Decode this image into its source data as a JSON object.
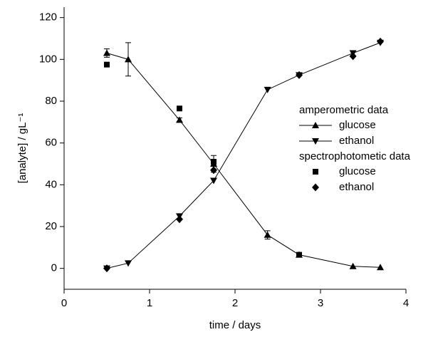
{
  "chart_data": {
    "type": "line",
    "xlabel": "time / days",
    "ylabel": "[analyte] / gL⁻¹",
    "xlim": [
      0,
      4
    ],
    "xticks": [
      0,
      1,
      2,
      3,
      4
    ],
    "ylim": [
      -10,
      125
    ],
    "yticks": [
      0,
      20,
      40,
      60,
      80,
      100,
      120
    ],
    "series_groups": [
      {
        "title": "amperometric data",
        "series": [
          {
            "name": "glucose",
            "color": "#000000",
            "marker": "triangle-up",
            "line": true,
            "x": [
              0.5,
              0.75,
              1.35,
              1.75,
              2.38,
              2.75,
              3.38,
              3.7
            ],
            "values": [
              103,
              100,
              71,
              50,
              16,
              6.5,
              1,
              0.5
            ],
            "errors": [
              2,
              8,
              1,
              4,
              2,
              1,
              null,
              null
            ]
          },
          {
            "name": "ethanol",
            "color": "#000000",
            "marker": "triangle-down",
            "line": true,
            "x": [
              0.5,
              0.75,
              1.35,
              1.75,
              2.38,
              2.75,
              3.38,
              3.7
            ],
            "values": [
              0,
              2.5,
              25,
              42,
              85.5,
              92.5,
              103,
              108
            ]
          }
        ]
      },
      {
        "title": "spectrophotometic data",
        "series": [
          {
            "name": "glucose",
            "color": "#000000",
            "marker": "square",
            "line": false,
            "x": [
              0.5,
              1.35,
              1.75,
              2.75
            ],
            "values": [
              97.5,
              76.5,
              51,
              6.5
            ]
          },
          {
            "name": "ethanol",
            "color": "#000000",
            "marker": "diamond",
            "line": false,
            "x": [
              0.5,
              1.35,
              1.75,
              2.75,
              3.38,
              3.7
            ],
            "values": [
              0,
              23.5,
              47,
              92.5,
              101.5,
              108.5
            ]
          }
        ]
      }
    ]
  }
}
